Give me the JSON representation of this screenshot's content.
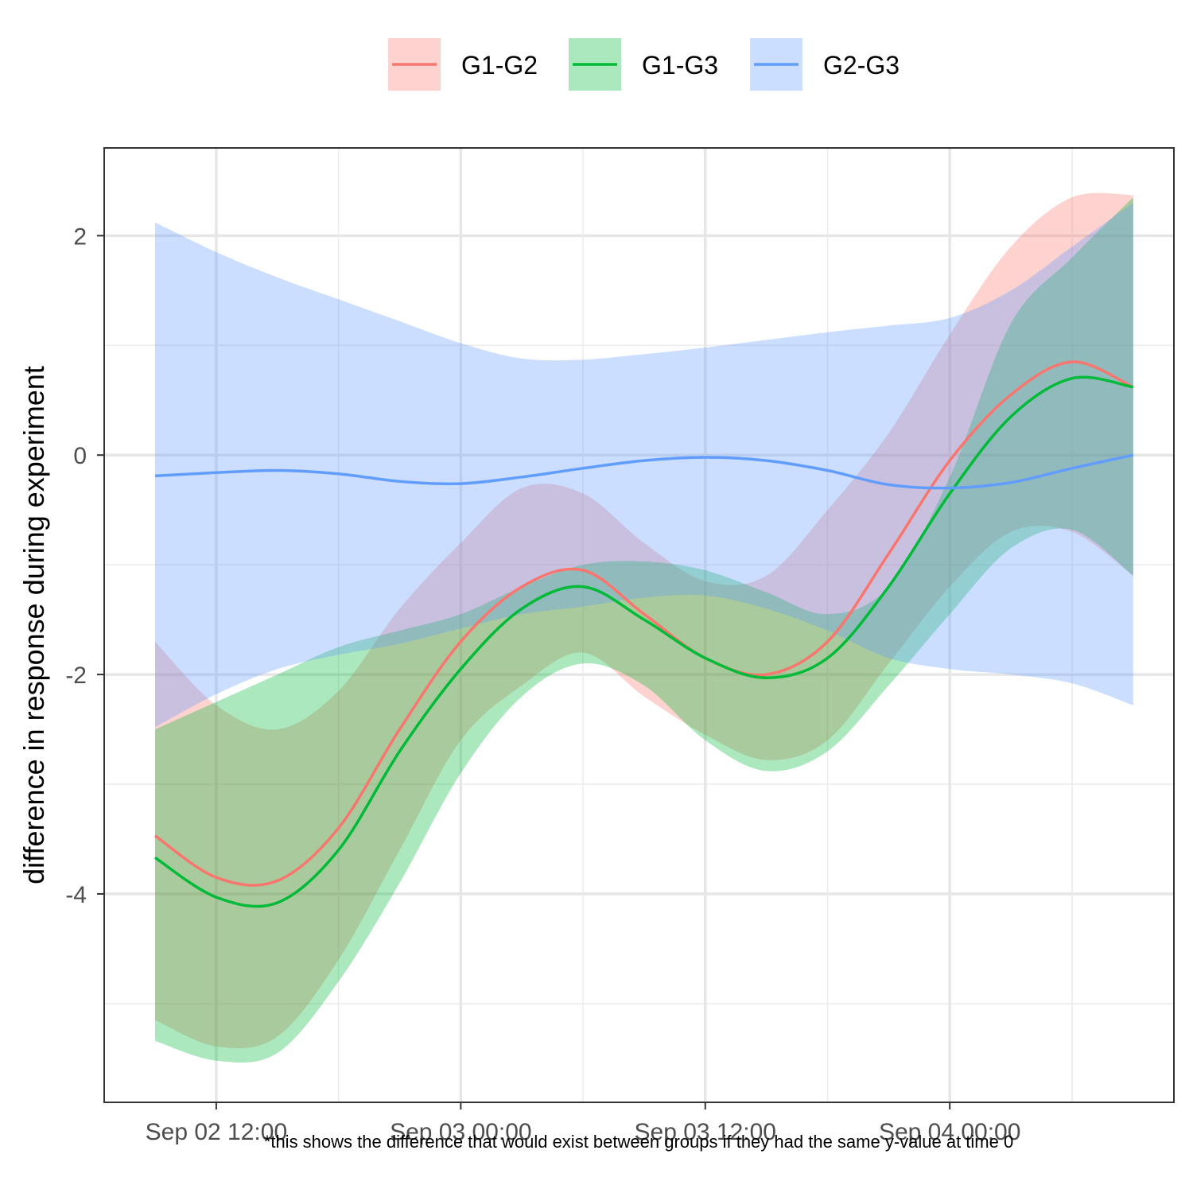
{
  "chart_data": {
    "type": "line",
    "ylabel": "difference in response during experiment",
    "caption": "*this shows the difference that would exist between groups if they had the same y-value at time 0",
    "x_unit": "hours",
    "xlim": [
      "2025-09-02T06:30",
      "2025-09-04T11:00"
    ],
    "ylim": [
      -5.9,
      2.8
    ],
    "y_ticks": [
      -4,
      -2,
      0,
      2
    ],
    "x_ticks": [
      {
        "x": "2025-09-02T12:00",
        "label": "Sep 02 12:00"
      },
      {
        "x": "2025-09-03T00:00",
        "label": "Sep 03 00:00"
      },
      {
        "x": "2025-09-03T12:00",
        "label": "Sep 03 12:00"
      },
      {
        "x": "2025-09-04T00:00",
        "label": "Sep 04 00:00"
      }
    ],
    "grid": true,
    "legend_position": "top",
    "series": [
      {
        "name": "G1-G2",
        "color": "#F8766D",
        "x": [
          "2025-09-02T09:00",
          "2025-09-02T12:00",
          "2025-09-02T15:00",
          "2025-09-02T18:00",
          "2025-09-02T21:00",
          "2025-09-03T00:00",
          "2025-09-03T03:00",
          "2025-09-03T06:00",
          "2025-09-03T09:00",
          "2025-09-03T12:00",
          "2025-09-03T15:00",
          "2025-09-03T18:00",
          "2025-09-03T21:00",
          "2025-09-04T00:00",
          "2025-09-04T03:00",
          "2025-09-04T06:00",
          "2025-09-04T09:00"
        ],
        "y": [
          -3.47,
          -3.85,
          -3.88,
          -3.4,
          -2.5,
          -1.7,
          -1.2,
          -1.05,
          -1.45,
          -1.85,
          -2.0,
          -1.7,
          -0.9,
          -0.05,
          0.55,
          0.85,
          0.62
        ],
        "lower": [
          -5.15,
          -5.39,
          -5.3,
          -4.6,
          -3.6,
          -2.6,
          -2.1,
          -1.8,
          -2.2,
          -2.55,
          -2.78,
          -2.6,
          -1.9,
          -1.2,
          -0.7,
          -0.7,
          -1.1
        ],
        "upper": [
          -1.7,
          -2.28,
          -2.5,
          -2.15,
          -1.4,
          -0.8,
          -0.3,
          -0.35,
          -0.8,
          -1.15,
          -1.1,
          -0.5,
          0.2,
          1.1,
          1.9,
          2.35,
          2.37
        ]
      },
      {
        "name": "G1-G3",
        "color": "#00BA38",
        "x": [
          "2025-09-02T09:00",
          "2025-09-02T12:00",
          "2025-09-02T15:00",
          "2025-09-02T18:00",
          "2025-09-02T21:00",
          "2025-09-03T00:00",
          "2025-09-03T03:00",
          "2025-09-03T06:00",
          "2025-09-03T09:00",
          "2025-09-03T12:00",
          "2025-09-03T15:00",
          "2025-09-03T18:00",
          "2025-09-03T21:00",
          "2025-09-04T00:00",
          "2025-09-04T03:00",
          "2025-09-04T06:00",
          "2025-09-04T09:00"
        ],
        "y": [
          -3.67,
          -4.03,
          -4.08,
          -3.6,
          -2.7,
          -1.95,
          -1.4,
          -1.2,
          -1.5,
          -1.85,
          -2.03,
          -1.85,
          -1.2,
          -0.35,
          0.35,
          0.7,
          0.62
        ],
        "lower": [
          -5.34,
          -5.52,
          -5.45,
          -4.8,
          -3.9,
          -2.9,
          -2.2,
          -1.9,
          -2.1,
          -2.6,
          -2.88,
          -2.7,
          -2.1,
          -1.45,
          -0.85,
          -0.68,
          -1.1
        ],
        "upper": [
          -2.5,
          -2.25,
          -2.0,
          -1.75,
          -1.6,
          -1.45,
          -1.2,
          -1.0,
          -0.97,
          -1.05,
          -1.25,
          -1.45,
          -1.2,
          -0.2,
          1.2,
          1.8,
          2.35
        ]
      },
      {
        "name": "G2-G3",
        "color": "#619CFF",
        "x": [
          "2025-09-02T09:00",
          "2025-09-02T12:00",
          "2025-09-02T15:00",
          "2025-09-02T18:00",
          "2025-09-02T21:00",
          "2025-09-03T00:00",
          "2025-09-03T03:00",
          "2025-09-03T06:00",
          "2025-09-03T09:00",
          "2025-09-03T12:00",
          "2025-09-03T15:00",
          "2025-09-03T18:00",
          "2025-09-03T21:00",
          "2025-09-04T00:00",
          "2025-09-04T03:00",
          "2025-09-04T06:00",
          "2025-09-04T09:00"
        ],
        "y": [
          -0.19,
          -0.16,
          -0.14,
          -0.17,
          -0.24,
          -0.26,
          -0.2,
          -0.12,
          -0.05,
          -0.02,
          -0.05,
          -0.14,
          -0.27,
          -0.3,
          -0.25,
          -0.12,
          0.0
        ],
        "lower": [
          -2.48,
          -2.18,
          -1.95,
          -1.82,
          -1.72,
          -1.58,
          -1.45,
          -1.38,
          -1.3,
          -1.28,
          -1.4,
          -1.6,
          -1.85,
          -1.95,
          -2.0,
          -2.08,
          -2.28
        ],
        "upper": [
          2.12,
          1.85,
          1.62,
          1.42,
          1.22,
          1.02,
          0.88,
          0.87,
          0.92,
          0.98,
          1.05,
          1.12,
          1.18,
          1.25,
          1.5,
          1.9,
          2.3
        ]
      }
    ]
  }
}
